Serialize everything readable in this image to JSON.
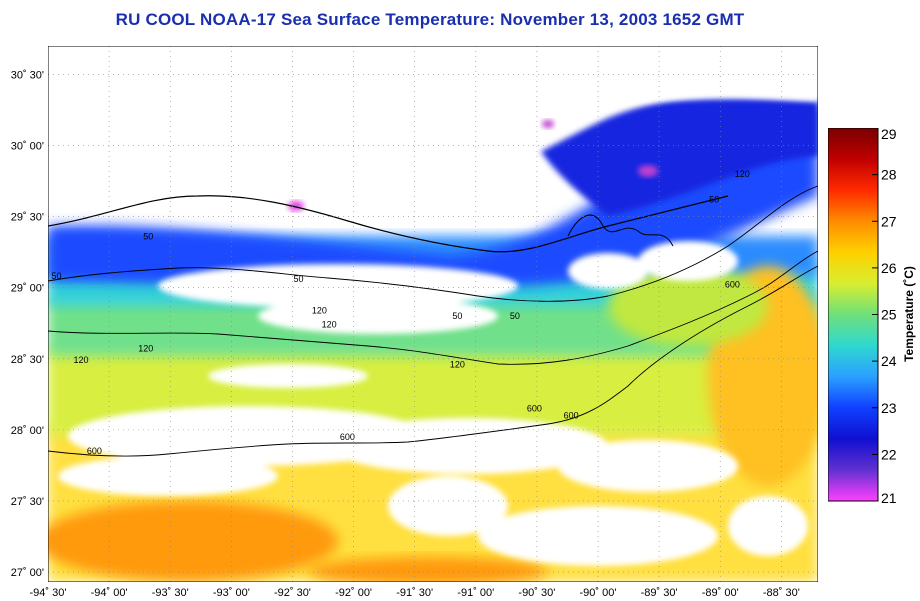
{
  "title": "RU COOL  NOAA-17  Sea Surface Temperature:  November 13, 2003 1652 GMT",
  "lat_ticks": [
    "30˚ 30'",
    "30˚ 00'",
    "29˚ 30'",
    "29˚ 00'",
    "28˚ 30'",
    "28˚ 00'",
    "27˚ 30'",
    "27˚ 00'"
  ],
  "lon_ticks": [
    "-94˚ 30'",
    "-94˚ 00'",
    "-93˚ 30'",
    "-93˚ 00'",
    "-92˚ 30'",
    "-92˚ 00'",
    "-91˚ 30'",
    "-91˚ 00'",
    "-90˚ 30'",
    "-90˚ 00'",
    "-89˚ 30'",
    "-89˚ 00'",
    "-88˚ 30'"
  ],
  "colorbar": {
    "title": "Temperature (˚C)",
    "ticks": [
      "29",
      "28",
      "27",
      "26",
      "25",
      "24",
      "23",
      "22",
      "21"
    ],
    "colors": [
      "#7a0000",
      "#c00000",
      "#ff2a00",
      "#ff8c00",
      "#ffd000",
      "#d8ee30",
      "#6fe07a",
      "#2fd8d0",
      "#2aa0ff",
      "#1040ff",
      "#1010d0",
      "#6030d0",
      "#ff40ff"
    ]
  },
  "contour_labels": [
    {
      "text": "50",
      "lon": -93.68,
      "lat": 29.34
    },
    {
      "text": "50",
      "lon": -94.43,
      "lat": 29.06
    },
    {
      "text": "50",
      "lon": -92.45,
      "lat": 29.04
    },
    {
      "text": "50",
      "lon": -91.15,
      "lat": 28.78
    },
    {
      "text": "50",
      "lon": -90.68,
      "lat": 28.78
    },
    {
      "text": "50",
      "lon": -89.05,
      "lat": 29.6
    },
    {
      "text": "120",
      "lon": -92.2,
      "lat": 28.72
    },
    {
      "text": "120",
      "lon": -92.28,
      "lat": 28.82
    },
    {
      "text": "120",
      "lon": -93.7,
      "lat": 28.55
    },
    {
      "text": "120",
      "lon": -94.23,
      "lat": 28.47
    },
    {
      "text": "120",
      "lon": -91.15,
      "lat": 28.44
    },
    {
      "text": "120",
      "lon": -88.82,
      "lat": 29.78
    },
    {
      "text": "600",
      "lon": -88.9,
      "lat": 29.0
    },
    {
      "text": "600",
      "lon": -90.52,
      "lat": 28.13
    },
    {
      "text": "600",
      "lon": -90.22,
      "lat": 28.08
    },
    {
      "text": "600",
      "lon": -92.05,
      "lat": 27.93
    },
    {
      "text": "600",
      "lon": -94.12,
      "lat": 27.83
    }
  ]
}
